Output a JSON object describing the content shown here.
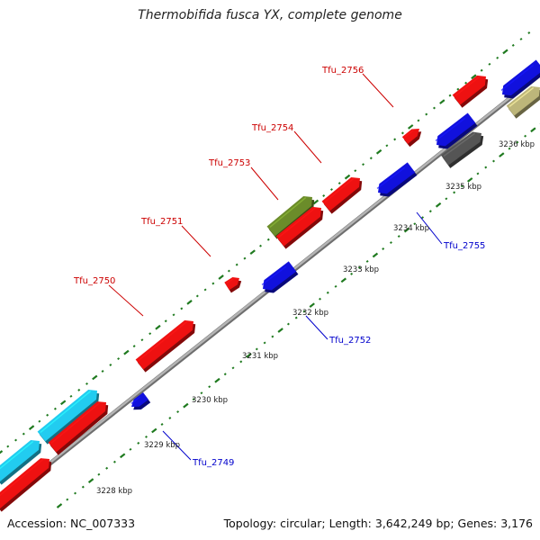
{
  "title": "Thermobifida fusca YX, complete genome",
  "footer": {
    "accession": "Accession: NC_007333",
    "summary": "Topology: circular; Length: 3,642,249 bp; Genes: 3,176"
  },
  "kbp_labels": [
    {
      "text": "3228 kbp"
    },
    {
      "text": "3229 kbp"
    },
    {
      "text": "3230 kbp"
    },
    {
      "text": "3231 kbp"
    },
    {
      "text": "3232 kbp"
    },
    {
      "text": "3233 kbp"
    },
    {
      "text": "3234 kbp"
    },
    {
      "text": "3235 kbp"
    },
    {
      "text": "3236 kbp"
    }
  ],
  "gene_labels": [
    {
      "text": "Tfu_2749",
      "strand": "minus",
      "color": "#0000cc"
    },
    {
      "text": "Tfu_2750",
      "strand": "plus",
      "color": "#cc0000"
    },
    {
      "text": "Tfu_2751",
      "strand": "plus",
      "color": "#cc0000"
    },
    {
      "text": "Tfu_2752",
      "strand": "minus",
      "color": "#0000cc"
    },
    {
      "text": "Tfu_2753",
      "strand": "plus",
      "color": "#cc0000"
    },
    {
      "text": "Tfu_2754",
      "strand": "plus",
      "color": "#cc0000"
    },
    {
      "text": "Tfu_2755",
      "strand": "minus",
      "color": "#0000cc"
    },
    {
      "text": "Tfu_2756",
      "strand": "plus",
      "color": "#cc0000"
    }
  ],
  "colors": {
    "plus_strand": "#ee1111",
    "minus_strand": "#1111dd",
    "cyan": "#22ccf0",
    "olive": "#6b8c2a",
    "gray_gene": "#555555",
    "khaki": "#bdb67a",
    "backbone": "#999999",
    "ticks": "#1f7a1f"
  }
}
